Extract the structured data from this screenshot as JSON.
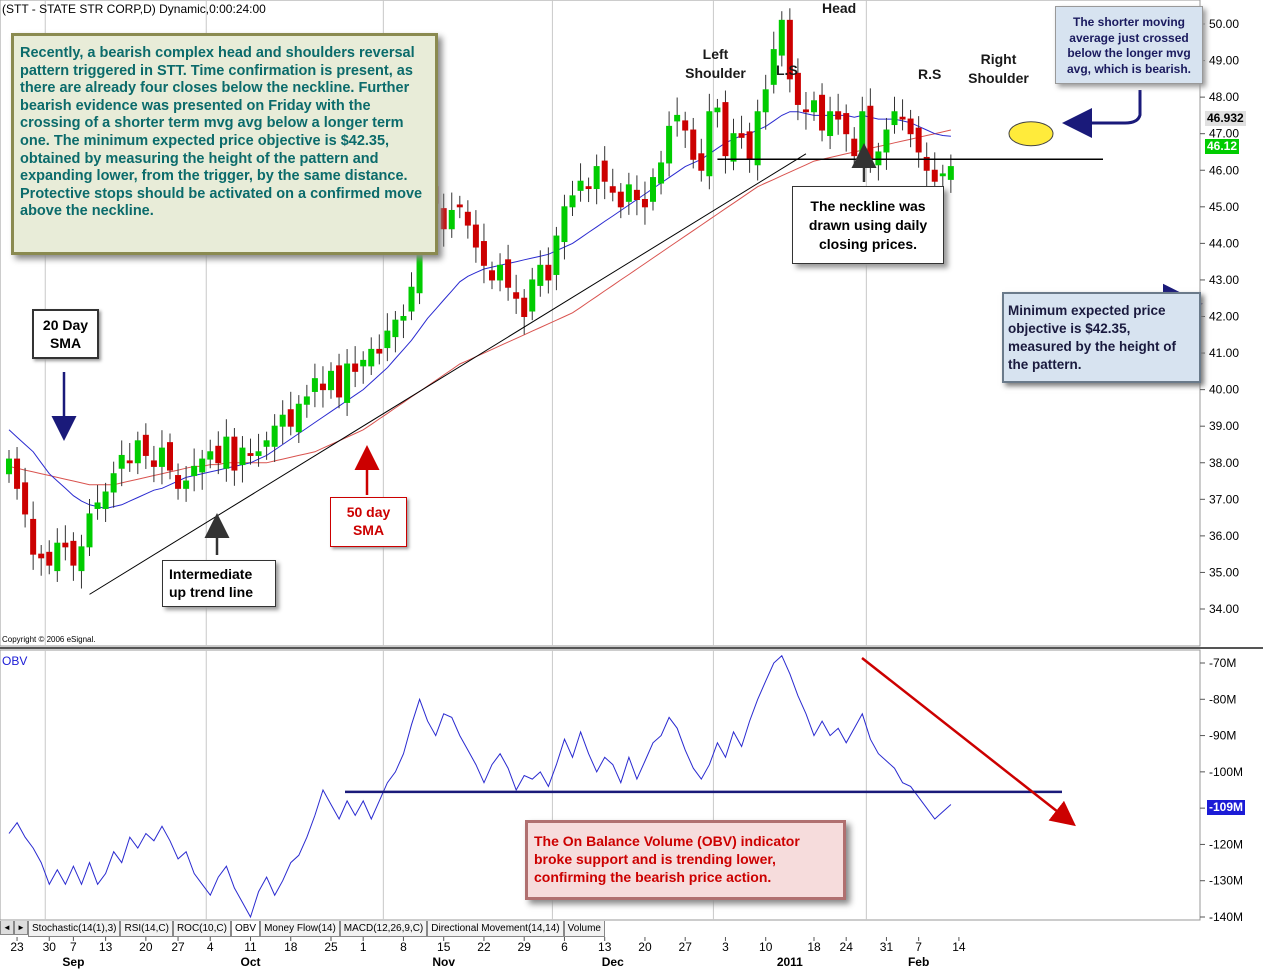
{
  "header": {
    "title": "(STT - STATE STR CORP,D) Dynamic,0:00:24:00",
    "copyright": "Copyright © 2006 eSignal.",
    "obv_label": "OBV"
  },
  "price_badges": {
    "sma_value": "46.932",
    "close_value": "46.12",
    "obv_value": "-109M",
    "sma_color": "#e0e0e0",
    "close_color": "#00cc00",
    "obv_color": "#1b1bd6"
  },
  "tabs": [
    "Stochastic(14(1),3)",
    "RSI(14,C)",
    "ROC(10,C)",
    "OBV",
    "Money Flow(14)",
    "MACD(12,26,9,C)",
    "Directional Movement(14,14)",
    "Volume"
  ],
  "tab_nav": [
    "◄",
    "►"
  ],
  "annotations": {
    "main_text": "Recently, a bearish complex head and shoulders reversal pattern triggered in STT. Time confirmation is present, as there are already four closes below the neckline. Further bearish evidence was presented on Friday with the crossing of a shorter term mvg avg below a longer term one. The minimum expected price objective is $42.35, obtained by measuring the height of the pattern and expanding lower, from the trigger, by the same distance. Protective stops should be activated on a confirmed move above the neckline.",
    "sma20": "20 Day SMA",
    "sma50": "50 day SMA",
    "trendline": "Intermediate up trend line",
    "neckline": "The neckline was drawn using daily closing prices.",
    "crossed": "The shorter moving average just crossed below the longer mvg avg, which is bearish.",
    "objective": "Minimum expected price objective is $42.35, measured by the height of the pattern.",
    "obv_note": "The On Balance Volume (OBV) indicator broke support and is trending lower, confirming the bearish price action.",
    "head": "Head",
    "left_shoulder": "Left Shoulder",
    "ls": "L.S",
    "rs": "R.S",
    "right_shoulder": "Right Shoulder"
  },
  "chart_data": [
    {
      "type": "candlestick",
      "title": "(STT - STATE STR CORP,D) Dynamic,0:00:24:00",
      "y_ticks": [
        34,
        35,
        36,
        37,
        38,
        39,
        40,
        41,
        42,
        43,
        44,
        45,
        46,
        47,
        48,
        49,
        50
      ],
      "y_tick_labels": [
        "34.00",
        "35.00",
        "36.00",
        "37.00",
        "38.00",
        "39.00",
        "40.00",
        "41.00",
        "42.00",
        "43.00",
        "44.00",
        "45.00",
        "46.00",
        "47.00",
        "48.00",
        "49.00",
        "50.00"
      ],
      "x_day_labels": [
        "23",
        "30",
        "7",
        "13",
        "20",
        "27",
        "4",
        "11",
        "18",
        "25",
        "1",
        "8",
        "15",
        "22",
        "29",
        "6",
        "13",
        "20",
        "27",
        "3",
        "10",
        "18",
        "24",
        "31",
        "7",
        "14"
      ],
      "x_month_labels": [
        "Sep",
        "Oct",
        "Nov",
        "Dec",
        "2011",
        "Feb"
      ],
      "closes": [
        38.1,
        37.3,
        36.6,
        35.5,
        35.4,
        35.2,
        35.8,
        35.7,
        35.2,
        35.7,
        36.6,
        36.9,
        37.2,
        37.7,
        38.2,
        38.0,
        38.6,
        38.2,
        37.9,
        38.4,
        37.8,
        37.3,
        37.5,
        37.9,
        38.1,
        38.3,
        38.0,
        38.7,
        37.8,
        38.4,
        38.2,
        38.3,
        38.6,
        39.0,
        39.3,
        39.0,
        39.6,
        39.8,
        40.3,
        40.0,
        40.5,
        39.8,
        40.7,
        40.5,
        40.8,
        41.1,
        41.0,
        41.6,
        41.9,
        42.0,
        42.8,
        45.0,
        45.4,
        45.1,
        44.4,
        44.9,
        45.0,
        44.5,
        43.9,
        43.4,
        43.0,
        43.4,
        42.8,
        42.5,
        42.0,
        43.0,
        43.4,
        43.0,
        44.2,
        45.0,
        45.3,
        45.7,
        45.5,
        46.1,
        45.7,
        45.4,
        45.0,
        45.6,
        45.2,
        45.0,
        45.8,
        46.2,
        47.2,
        47.5,
        47.1,
        46.3,
        46.0,
        47.6,
        47.7,
        46.4,
        47.0,
        46.9,
        46.3,
        47.6,
        48.2,
        49.3,
        50.1,
        48.5,
        47.8,
        47.6,
        47.9,
        47.1,
        47.6,
        47.4,
        47.0,
        46.4,
        47.6,
        46.3,
        46.5,
        47.1,
        47.6,
        47.4,
        47.0,
        46.5,
        46.0,
        45.7,
        45.9,
        46.1
      ],
      "sma20": [
        38.9,
        38.7,
        38.5,
        38.3,
        38.0,
        37.7,
        37.5,
        37.3,
        37.1,
        36.95,
        36.85,
        36.8,
        36.75,
        36.8,
        36.85,
        36.95,
        37.05,
        37.15,
        37.25,
        37.3,
        37.4,
        37.5,
        37.6,
        37.65,
        37.7,
        37.75,
        37.8,
        37.85,
        37.9,
        37.95,
        38.0,
        38.1,
        38.2,
        38.35,
        38.5,
        38.65,
        38.8,
        38.95,
        39.1,
        39.25,
        39.4,
        39.55,
        39.7,
        39.85,
        40.0,
        40.2,
        40.4,
        40.6,
        40.85,
        41.1,
        41.35,
        41.65,
        41.95,
        42.2,
        42.45,
        42.7,
        42.95,
        43.1,
        43.2,
        43.3,
        43.35,
        43.4,
        43.45,
        43.5,
        43.55,
        43.6,
        43.65,
        43.7,
        43.8,
        43.9,
        44.0,
        44.15,
        44.3,
        44.45,
        44.6,
        44.75,
        44.9,
        45.05,
        45.2,
        45.35,
        45.5,
        45.65,
        45.8,
        45.95,
        46.1,
        46.2,
        46.3,
        46.45,
        46.6,
        46.75,
        46.85,
        46.95,
        47.0,
        47.1,
        47.2,
        47.35,
        47.5,
        47.6,
        47.6,
        47.55,
        47.5,
        47.5,
        47.5,
        47.5,
        47.5,
        47.45,
        47.5,
        47.45,
        47.4,
        47.4,
        47.4,
        47.35,
        47.3,
        47.2,
        47.1,
        47.0,
        46.95,
        46.93
      ],
      "sma50": [
        37.9,
        37.85,
        37.8,
        37.75,
        37.7,
        37.65,
        37.6,
        37.55,
        37.5,
        37.45,
        37.4,
        37.4,
        37.4,
        37.4,
        37.45,
        37.5,
        37.55,
        37.6,
        37.65,
        37.7,
        37.75,
        37.8,
        37.85,
        37.9,
        37.9,
        37.95,
        37.95,
        38.0,
        38.0,
        38.0,
        38.0,
        38.0,
        38.0,
        38.05,
        38.1,
        38.15,
        38.2,
        38.25,
        38.3,
        38.4,
        38.5,
        38.6,
        38.7,
        38.8,
        38.9,
        39.05,
        39.2,
        39.35,
        39.5,
        39.65,
        39.8,
        39.95,
        40.1,
        40.25,
        40.4,
        40.55,
        40.7,
        40.8,
        40.9,
        41.0,
        41.1,
        41.2,
        41.3,
        41.4,
        41.5,
        41.6,
        41.7,
        41.8,
        41.9,
        42.0,
        42.1,
        42.25,
        42.4,
        42.55,
        42.7,
        42.85,
        43.0,
        43.15,
        43.3,
        43.45,
        43.6,
        43.75,
        43.9,
        44.05,
        44.2,
        44.35,
        44.5,
        44.65,
        44.8,
        44.95,
        45.1,
        45.25,
        45.4,
        45.55,
        45.65,
        45.75,
        45.85,
        45.95,
        46.05,
        46.15,
        46.25,
        46.3,
        46.35,
        46.4,
        46.45,
        46.5,
        46.55,
        46.6,
        46.65,
        46.7,
        46.75,
        46.8,
        46.85,
        46.9,
        46.95,
        47.0,
        47.05,
        47.1
      ],
      "neckline": 46.3,
      "objective": 42.35
    },
    {
      "type": "line",
      "title": "OBV",
      "y_ticks": [
        -70,
        -80,
        -90,
        -100,
        -110,
        -120,
        -130,
        -140
      ],
      "y_tick_labels": [
        "-70M",
        "-80M",
        "-90M",
        "-100M",
        "-110M",
        "-120M",
        "-130M",
        "-140M"
      ],
      "values": [
        -117,
        -114,
        -118,
        -121,
        -125,
        -131,
        -127,
        -131,
        -126,
        -131,
        -125,
        -131,
        -128,
        -122,
        -125,
        -118,
        -121,
        -117,
        -119,
        -115,
        -119,
        -124,
        -122,
        -128,
        -131,
        -134,
        -129,
        -126,
        -132,
        -136,
        -140,
        -133,
        -129,
        -134,
        -130,
        -125,
        -123,
        -118,
        -112,
        -105,
        -109,
        -113,
        -108,
        -112,
        -108,
        -113,
        -108,
        -103,
        -100,
        -95,
        -87,
        -80,
        -86,
        -90,
        -84,
        -85,
        -90,
        -94,
        -98,
        -103,
        -98,
        -95,
        -99,
        -105,
        -101,
        -102,
        -100,
        -104,
        -98,
        -91,
        -96,
        -89,
        -95,
        -100,
        -96,
        -98,
        -103,
        -96,
        -102,
        -97,
        -92,
        -90,
        -85,
        -88,
        -94,
        -99,
        -102,
        -98,
        -92,
        -96,
        -89,
        -93,
        -86,
        -80,
        -75,
        -70,
        -68,
        -73,
        -79,
        -84,
        -90,
        -86,
        -90,
        -88,
        -92,
        -88,
        -84,
        -91,
        -95,
        -97,
        -99,
        -103,
        -104,
        -107,
        -110,
        -113,
        -111,
        -109
      ],
      "support_level": -105.5
    }
  ]
}
